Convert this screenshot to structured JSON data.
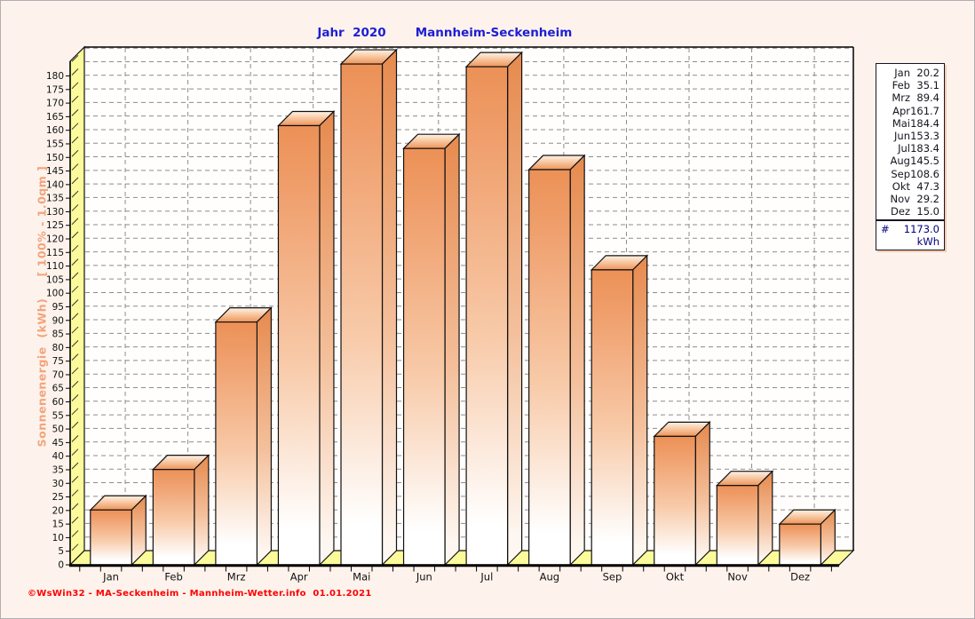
{
  "window": {
    "background": "#FDF3EC",
    "border_color": "#B3ADB3"
  },
  "titles": {
    "year": "Jahr  2020",
    "station": "Mannheim-Seckenheim",
    "color": "#1E1ED2"
  },
  "y_axis_title": {
    "text": "Sonnenenergie  (kWh)     [ 100% - 1.0qm ]",
    "color": "#F2A47C"
  },
  "footer": {
    "text": "©WsWin32 - MA-Seckenheim - Mannheim-Wetter.info  01.01.2021",
    "color": "#FF0000"
  },
  "chart_data": {
    "type": "bar",
    "title": "Jahr 2020 Mannheim-Seckenheim",
    "categories": [
      "Jan",
      "Feb",
      "Mrz",
      "Apr",
      "Mai",
      "Jun",
      "Jul",
      "Aug",
      "Sep",
      "Okt",
      "Nov",
      "Dez"
    ],
    "values": [
      20.2,
      35.1,
      89.4,
      161.7,
      184.4,
      153.3,
      183.4,
      145.5,
      108.6,
      47.3,
      29.2,
      15.0
    ],
    "xlabel": "",
    "ylabel": "Sonnenenergie (kWh) [ 100% - 1.0qm ]",
    "ylim": [
      0,
      185.4
    ],
    "ytick_step": 5,
    "ylabel_max": 180,
    "grid": "dashed, horizontal every 5 kWh, vertical at month centers",
    "legend_position": "right",
    "style": "3d-beveled-bars",
    "colors": {
      "bar_gradient_top": "#EC9157",
      "bar_gradient_mid": "#F8CBAA",
      "bar_gradient_bottom": "#FFFFFF",
      "bar_side_top": "#E68A4E",
      "bar_outline": "#111111",
      "wall_floor": "#FBFB9B",
      "gridline": "#8C8C8C",
      "plot_background": "#FFFEFD",
      "axis_text": "#111111"
    }
  },
  "legend": {
    "total_symbol": "#",
    "total_value": "1173.0",
    "total_unit": "kWh"
  }
}
